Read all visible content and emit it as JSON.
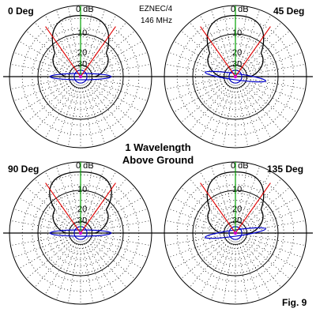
{
  "header": {
    "software": "EZNEC/4",
    "frequency": "146 MHz"
  },
  "center_caption": {
    "line1": "1 Wavelength",
    "line2": "Above Ground"
  },
  "figure_label": "Fig. 9",
  "chart_data": [
    {
      "type": "polar",
      "title": "0 Deg",
      "radial_tick_labels": [
        "0 dB",
        "10",
        "20",
        "30"
      ],
      "radial_ticks_db": [
        0,
        -10,
        -20,
        -30
      ],
      "grid": "dotted",
      "colors": {
        "pattern": "#000000",
        "line_red": "#e00000",
        "line_green": "#00a000",
        "inner": "#0000cc"
      },
      "beam_lines_deg": [
        -35,
        35
      ],
      "main_lobe": {
        "width_db": -5,
        "shape": "narrow"
      },
      "inner_lobe_tilt_deg": 0
    },
    {
      "type": "polar",
      "title": "45 Deg",
      "radial_tick_labels": [
        "0 dB",
        "10",
        "20",
        "30"
      ],
      "radial_ticks_db": [
        0,
        -10,
        -20,
        -30
      ],
      "grid": "dotted",
      "colors": {
        "pattern": "#000000",
        "line_red": "#e00000",
        "line_green": "#00a000",
        "inner": "#0000cc"
      },
      "beam_lines_deg": [
        -35,
        35
      ],
      "main_lobe": {
        "width_db": -5,
        "shape": "narrow"
      },
      "inner_lobe_tilt_deg": -8
    },
    {
      "type": "polar",
      "title": "90 Deg",
      "radial_tick_labels": [
        "0 dB",
        "10",
        "20",
        "30"
      ],
      "radial_ticks_db": [
        0,
        -10,
        -20,
        -30
      ],
      "grid": "dotted",
      "colors": {
        "pattern": "#000000",
        "line_red": "#e00000",
        "line_green": "#00a000",
        "inner": "#0000cc"
      },
      "beam_lines_deg": [
        -35,
        35
      ],
      "main_lobe": {
        "width_db": -5,
        "shape": "broad"
      },
      "inner_lobe_tilt_deg": 0
    },
    {
      "type": "polar",
      "title": "135 Deg",
      "radial_tick_labels": [
        "0 dB",
        "10",
        "20",
        "30"
      ],
      "radial_ticks_db": [
        0,
        -10,
        -20,
        -30
      ],
      "grid": "dotted",
      "colors": {
        "pattern": "#000000",
        "line_red": "#e00000",
        "line_green": "#00a000",
        "inner": "#0000cc"
      },
      "beam_lines_deg": [
        -35,
        35
      ],
      "main_lobe": {
        "width_db": -5,
        "shape": "narrow"
      },
      "inner_lobe_tilt_deg": 8
    }
  ]
}
